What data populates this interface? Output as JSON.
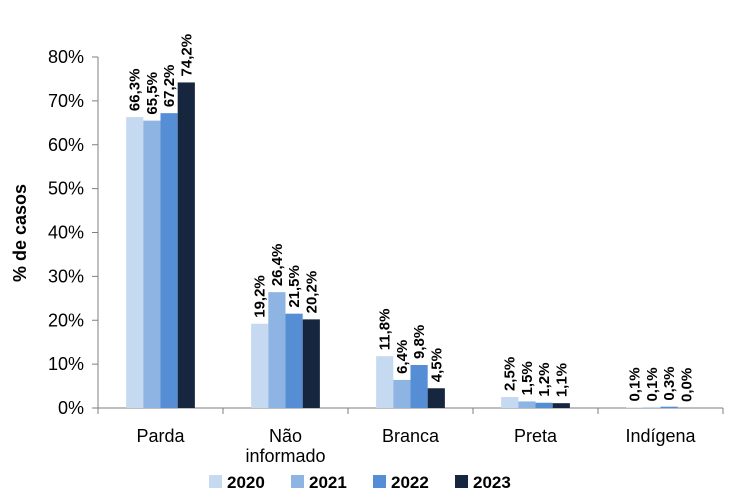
{
  "chart_data": {
    "type": "bar",
    "title": "",
    "ylabel": "% de casos",
    "xlabel": "",
    "ylim": [
      0,
      80
    ],
    "yticks": [
      "0%",
      "10%",
      "20%",
      "30%",
      "40%",
      "50%",
      "60%",
      "70%",
      "80%"
    ],
    "categories": [
      "Parda",
      "Não informado",
      "Branca",
      "Preta",
      "Indígena"
    ],
    "series": [
      {
        "name": "2020",
        "color": "#c5d9f1",
        "values": [
          66.3,
          19.2,
          11.8,
          2.5,
          0.1
        ],
        "labels": [
          "66,3%",
          "19,2%",
          "11,8%",
          "2,5%",
          "0,1%"
        ]
      },
      {
        "name": "2021",
        "color": "#8eb4e3",
        "values": [
          65.5,
          26.4,
          6.4,
          1.5,
          0.1
        ],
        "labels": [
          "65,5%",
          "26,4%",
          "6,4%",
          "1,5%",
          "0,1%"
        ]
      },
      {
        "name": "2022",
        "color": "#558ed5",
        "values": [
          67.2,
          21.5,
          9.8,
          1.2,
          0.3
        ],
        "labels": [
          "67,2%",
          "21,5%",
          "9,8%",
          "1,2%",
          "0,3%"
        ]
      },
      {
        "name": "2023",
        "color": "#17263f",
        "values": [
          74.2,
          20.2,
          4.5,
          1.1,
          0.0
        ],
        "labels": [
          "74,2%",
          "20,2%",
          "4,5%",
          "1,1%",
          "0,0%"
        ]
      }
    ],
    "grid": false,
    "legend": "bottom"
  }
}
